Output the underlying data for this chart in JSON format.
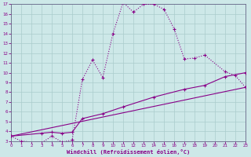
{
  "bg_color": "#cde8e8",
  "line_color": "#880088",
  "grid_color": "#b8d8d8",
  "xlabel": "Windchill (Refroidissement éolien,°C)",
  "xlabel_color": "#880088",
  "tick_color": "#880088",
  "xmin": 0,
  "xmax": 23,
  "ymin": 3,
  "ymax": 17,
  "series1": [
    [
      0,
      3.5
    ],
    [
      1,
      3.0
    ],
    [
      3,
      2.8
    ],
    [
      4,
      3.5
    ],
    [
      5,
      2.9
    ],
    [
      6,
      3.1
    ],
    [
      7,
      9.3
    ],
    [
      8,
      11.3
    ],
    [
      9,
      9.5
    ],
    [
      10,
      14.0
    ],
    [
      11,
      17.2
    ],
    [
      12,
      16.2
    ],
    [
      13,
      17.0
    ],
    [
      14,
      17.0
    ],
    [
      15,
      16.5
    ],
    [
      16,
      14.5
    ],
    [
      17,
      11.4
    ],
    [
      18,
      11.5
    ],
    [
      19,
      11.8
    ],
    [
      21,
      10.1
    ],
    [
      22,
      9.7
    ],
    [
      23,
      8.5
    ]
  ],
  "series2": [
    [
      0,
      3.5
    ],
    [
      23,
      8.5
    ]
  ],
  "series3": [
    [
      0,
      3.5
    ],
    [
      3,
      3.8
    ],
    [
      4,
      3.9
    ],
    [
      5,
      3.8
    ],
    [
      6,
      3.9
    ],
    [
      7,
      5.3
    ],
    [
      9,
      5.8
    ],
    [
      11,
      6.5
    ],
    [
      14,
      7.5
    ],
    [
      17,
      8.3
    ],
    [
      19,
      8.7
    ],
    [
      21,
      9.6
    ],
    [
      23,
      10.0
    ]
  ]
}
